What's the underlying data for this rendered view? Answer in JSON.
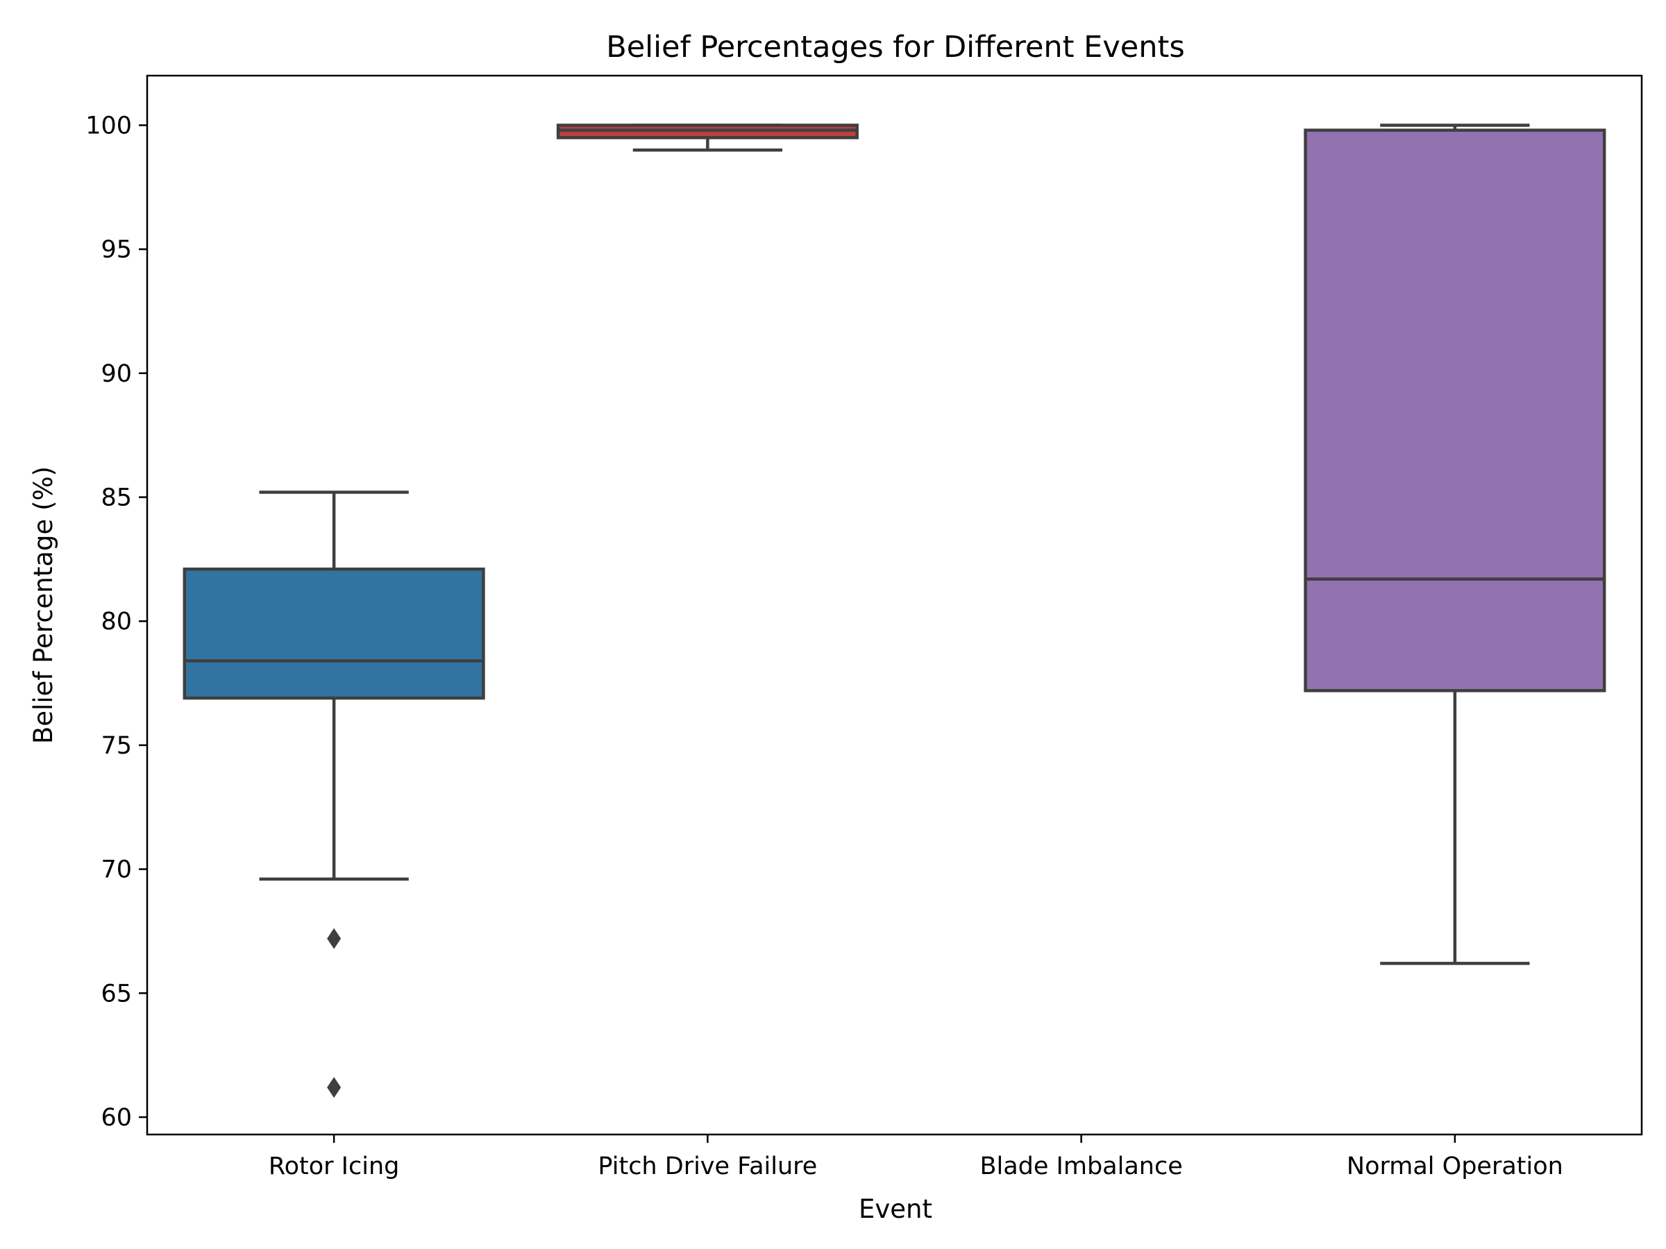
{
  "chart_data": {
    "type": "box",
    "title": "Belief Percentages for Different Events",
    "xlabel": "Event",
    "ylabel": "Belief Percentage (%)",
    "ylim": [
      59.3,
      102.0
    ],
    "yticks": [
      60,
      65,
      70,
      75,
      80,
      85,
      90,
      95,
      100
    ],
    "categories": [
      "Rotor Icing",
      "Pitch Drive Failure",
      "Blade Imbalance",
      "Normal Operation"
    ],
    "boxes": [
      {
        "category": "Rotor Icing",
        "whisker_low": 69.6,
        "q1": 76.9,
        "median": 78.4,
        "q3": 82.1,
        "whisker_high": 85.2,
        "outliers": [
          67.2,
          61.2
        ],
        "color": "#3274a1"
      },
      {
        "category": "Pitch Drive Failure",
        "whisker_low": 99.0,
        "q1": 99.5,
        "median": 99.8,
        "q3": 100.0,
        "whisker_high": 100.0,
        "outliers": [],
        "color": "#c03d3e"
      },
      {
        "category": "Blade Imbalance",
        "whisker_low": null,
        "q1": null,
        "median": null,
        "q3": null,
        "whisker_high": null,
        "outliers": [],
        "color": "#3a923a"
      },
      {
        "category": "Normal Operation",
        "whisker_low": 66.2,
        "q1": 77.2,
        "median": 81.7,
        "q3": 99.8,
        "whisker_high": 100.0,
        "outliers": [],
        "color": "#9372b2"
      }
    ],
    "grid": false,
    "legend": "none",
    "line_color": "#3f3f3f"
  }
}
